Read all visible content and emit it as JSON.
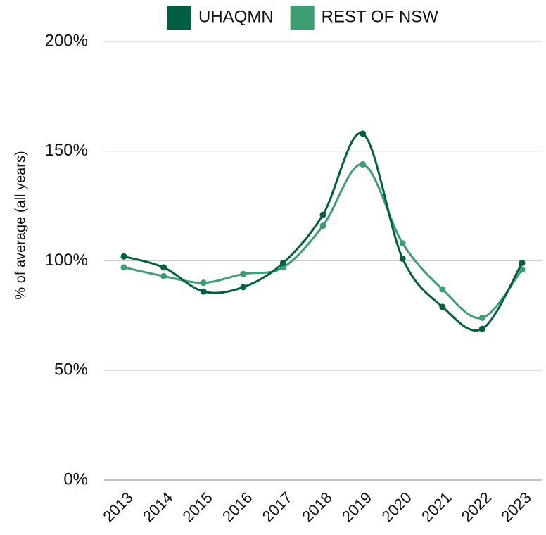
{
  "chart_data": {
    "type": "line",
    "y_label": "% of average (all years)",
    "x": [
      "2013",
      "2014",
      "2015",
      "2016",
      "2017",
      "2018",
      "2019",
      "2020",
      "2021",
      "2022",
      "2023"
    ],
    "series": [
      {
        "name": "UHAQMN",
        "color": "#005f43",
        "values": [
          102,
          97,
          86,
          88,
          99,
          121,
          158,
          101,
          79,
          69,
          99
        ]
      },
      {
        "name": "REST OF NSW",
        "color": "#3d9e73",
        "values": [
          97,
          93,
          90,
          94,
          97,
          116,
          144,
          108,
          87,
          74,
          96
        ]
      }
    ],
    "ylim": [
      0,
      200
    ],
    "yticks": [
      {
        "value": 0,
        "label": "0%"
      },
      {
        "value": 50,
        "label": "50%"
      },
      {
        "value": 100,
        "label": "100%"
      },
      {
        "value": 150,
        "label": "150%"
      },
      {
        "value": 200,
        "label": "200%"
      }
    ],
    "grid": true,
    "legend": "top"
  }
}
